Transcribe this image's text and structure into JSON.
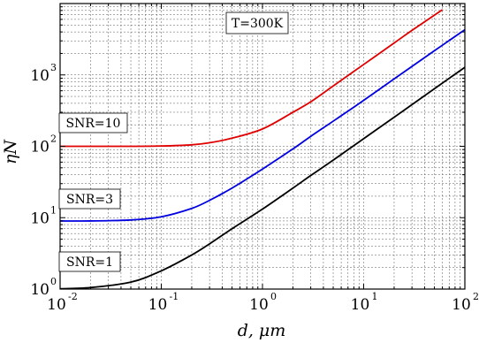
{
  "chart_data": {
    "type": "line",
    "title": "",
    "xlabel": "d, μm",
    "ylabel": "ηN",
    "x_scale": "log",
    "y_scale": "log",
    "xlim": [
      0.01,
      100
    ],
    "ylim": [
      1,
      10000
    ],
    "grid": true,
    "x_ticks": [
      {
        "base": "10",
        "exp": "-2"
      },
      {
        "base": "10",
        "exp": "-1"
      },
      {
        "base": "10",
        "exp": "0"
      },
      {
        "base": "10",
        "exp": "1"
      },
      {
        "base": "10",
        "exp": "2"
      }
    ],
    "y_ticks": [
      {
        "base": "10",
        "exp": "0"
      },
      {
        "base": "10",
        "exp": "1"
      },
      {
        "base": "10",
        "exp": "2"
      },
      {
        "base": "10",
        "exp": "3"
      }
    ],
    "annotations": [
      "T=300K",
      "SNR=10",
      "SNR=3",
      "SNR=1"
    ],
    "series": [
      {
        "label": "SNR=10",
        "color": "#e00000",
        "x": [
          0.01,
          0.02,
          0.05,
          0.1,
          0.2,
          0.3,
          0.5,
          1,
          2,
          3,
          5,
          10,
          20,
          30,
          60
        ],
        "y": [
          100,
          100,
          100,
          101,
          105,
          112,
          130,
          175,
          300,
          420,
          700,
          1400,
          2800,
          4200,
          8200
        ]
      },
      {
        "label": "SNR=3",
        "color": "#0000e0",
        "x": [
          0.01,
          0.02,
          0.05,
          0.1,
          0.2,
          0.3,
          0.5,
          1,
          2,
          3,
          5,
          10,
          20,
          50,
          100
        ],
        "y": [
          9,
          9,
          9.3,
          10.3,
          13.5,
          17.5,
          26,
          48,
          92,
          138,
          225,
          440,
          880,
          2180,
          4300
        ]
      },
      {
        "label": "SNR=1",
        "color": "#000000",
        "x": [
          0.01,
          0.02,
          0.05,
          0.1,
          0.2,
          0.3,
          0.5,
          1,
          2,
          3,
          5,
          10,
          20,
          50,
          100
        ],
        "y": [
          1.01,
          1.05,
          1.25,
          1.8,
          3.0,
          4.3,
          7.0,
          13.2,
          26,
          39,
          64,
          128,
          255,
          640,
          1280
        ]
      }
    ]
  }
}
